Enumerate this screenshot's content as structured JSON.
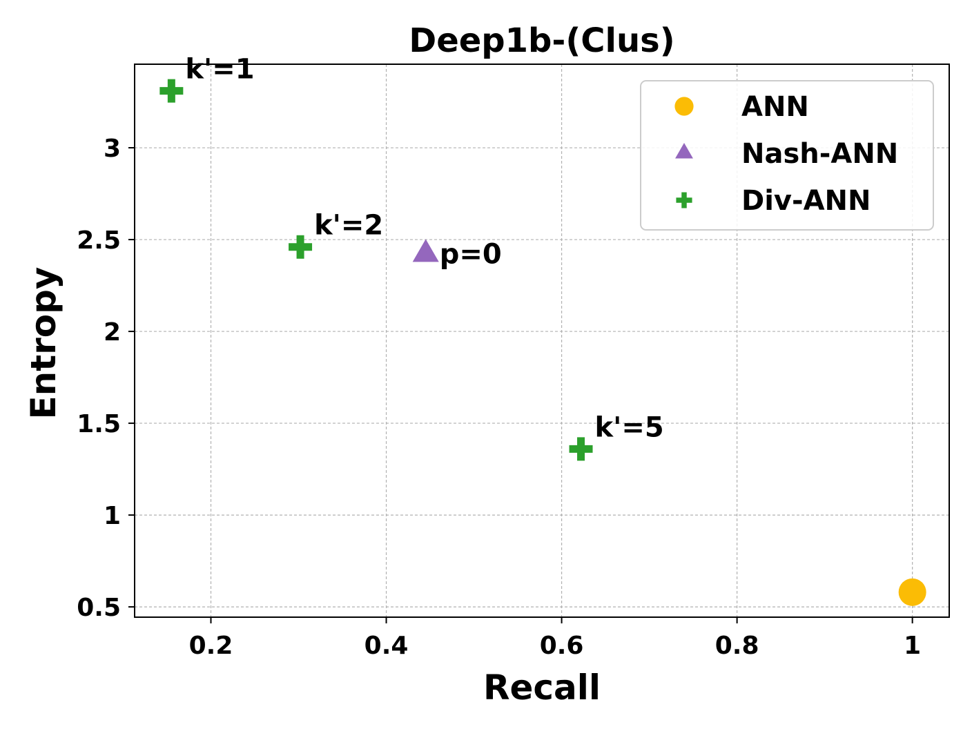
{
  "chart_data": {
    "type": "scatter",
    "title": "Deep1b-(Clus)",
    "xlabel": "Recall",
    "ylabel": "Entropy",
    "xlim": [
      0.113,
      1.042
    ],
    "ylim": [
      0.444,
      3.455
    ],
    "xticks": [
      0.2,
      0.4,
      0.6,
      0.8,
      1.0
    ],
    "xtick_labels": [
      "0.2",
      "0.4",
      "0.6",
      "0.8",
      "1"
    ],
    "yticks": [
      0.5,
      1.0,
      1.5,
      2.0,
      2.5,
      3.0
    ],
    "ytick_labels": [
      "0.5",
      "1",
      "1.5",
      "2",
      "2.5",
      "3"
    ],
    "grid": true,
    "legend_position": "top-right",
    "series": [
      {
        "name": "ANN",
        "marker": "circle",
        "color": "#FBBC05",
        "points": [
          {
            "x": 1.0,
            "y": 0.58,
            "label": ""
          }
        ]
      },
      {
        "name": "Nash-ANN",
        "marker": "triangle",
        "color": "#9467BD",
        "points": [
          {
            "x": 0.445,
            "y": 2.42,
            "label": "p=0"
          }
        ]
      },
      {
        "name": "Div-ANN",
        "marker": "plus",
        "color": "#2CA02C",
        "points": [
          {
            "x": 0.155,
            "y": 3.31,
            "label": "k'=1"
          },
          {
            "x": 0.302,
            "y": 2.46,
            "label": "k'=2"
          },
          {
            "x": 0.622,
            "y": 1.36,
            "label": "k'=5"
          }
        ]
      }
    ]
  }
}
